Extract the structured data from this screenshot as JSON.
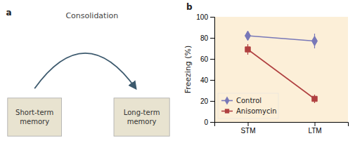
{
  "chart_data": {
    "type": "line",
    "categories": [
      "STM",
      "LTM"
    ],
    "ylabel": "Freezing (%)",
    "ylim": [
      0,
      100
    ],
    "yticks": [
      0,
      20,
      40,
      60,
      80,
      100
    ],
    "grid": false,
    "legend": "lower left",
    "series": [
      {
        "name": "Control",
        "color": "#7878b8",
        "marker": "diamond",
        "values": [
          82,
          77
        ],
        "errors": [
          4,
          7
        ]
      },
      {
        "name": "Anisomycin",
        "color": "#b04040",
        "marker": "square",
        "values": [
          69,
          22
        ],
        "errors": [
          5,
          4
        ]
      }
    ],
    "annotations": [
      "a",
      "Consolidation",
      "Short-term\nmemory",
      "Long-term\nmemory",
      "b"
    ]
  }
}
